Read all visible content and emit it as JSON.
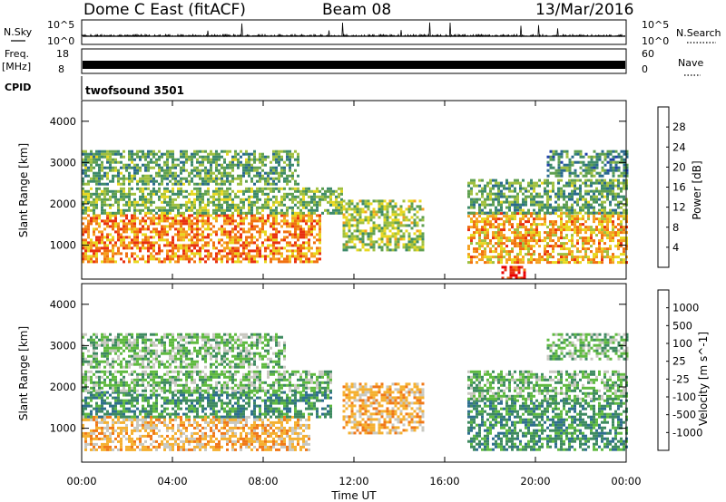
{
  "header": {
    "station": "Dome C East (fitACF)",
    "beam": "Beam 08",
    "date": "13/Mar/2016"
  },
  "panels": {
    "nsky": {
      "label": "N.Sky",
      "ticks": [
        "10^5",
        "10^0"
      ],
      "right_label": "N.Search",
      "right_ticks": [
        "10^5",
        "10^0"
      ]
    },
    "freq": {
      "label_line1": "Freq.",
      "label_line2": "[MHz]",
      "ticks": [
        "18",
        "8"
      ],
      "right_label": "Nave",
      "right_ticks": [
        "60",
        "0"
      ]
    },
    "cpid": {
      "label": "CPID",
      "program": "twofsound 3501"
    }
  },
  "chart_data": [
    {
      "type": "heatmap",
      "name": "power",
      "xlabel": "Time UT",
      "ylabel": "Slant Range [km]",
      "x_ticks": [
        "00:00",
        "04:00",
        "08:00",
        "12:00",
        "16:00",
        "20:00",
        "00:00"
      ],
      "x_range_hours": [
        0,
        24
      ],
      "y_ticks": [
        1000,
        2000,
        3000,
        4000
      ],
      "y_range_km": [
        180,
        4500
      ],
      "colorbar": {
        "label": "Power [dB]",
        "ticks": [
          "28",
          "24",
          "20",
          "16",
          "12",
          "8",
          "4"
        ],
        "range": [
          0,
          32
        ],
        "colors": [
          "#0000ff",
          "#1d3fa8",
          "#2a6a8e",
          "#3d8a6a",
          "#5fa050",
          "#a0c040",
          "#e8d820",
          "#f5a020",
          "#f07010",
          "#e83010",
          "#e80000"
        ]
      },
      "bands": [
        {
          "t0": 0,
          "t1": 10.5,
          "r0": 600,
          "r1": 1750,
          "value": 24
        },
        {
          "t0": 0,
          "t1": 11.5,
          "r0": 1750,
          "r1": 2400,
          "value": 14
        },
        {
          "t0": 0,
          "t1": 9.5,
          "r0": 2500,
          "r1": 3300,
          "value": 12
        },
        {
          "t0": 11.5,
          "t1": 15,
          "r0": 900,
          "r1": 2100,
          "value": 16
        },
        {
          "t0": 17,
          "t1": 24,
          "r0": 600,
          "r1": 1800,
          "value": 22
        },
        {
          "t0": 17,
          "t1": 24,
          "r0": 1800,
          "r1": 2600,
          "value": 12
        },
        {
          "t0": 20.5,
          "t1": 24,
          "r0": 2700,
          "r1": 3300,
          "value": 10
        },
        {
          "t0": 18.5,
          "t1": 19.5,
          "r0": 180,
          "r1": 500,
          "value": 30
        }
      ]
    },
    {
      "type": "heatmap",
      "name": "velocity",
      "xlabel": "Time UT",
      "ylabel": "Slant Range [km]",
      "x_ticks": [
        "00:00",
        "04:00",
        "08:00",
        "12:00",
        "16:00",
        "20:00",
        "00:00"
      ],
      "x_range_hours": [
        0,
        24
      ],
      "y_ticks": [
        1000,
        2000,
        3000,
        4000
      ],
      "y_range_km": [
        180,
        4500
      ],
      "colorbar": {
        "label": "Velocity [m s^-1]",
        "ticks": [
          "1000",
          "500",
          "100",
          "25",
          "-25",
          "-100",
          "-500",
          "-1000"
        ],
        "colors": [
          "#1a3fb0",
          "#2e6e8e",
          "#3e8a60",
          "#5fba40",
          "#c8c8c0",
          "#f5b030",
          "#f07818",
          "#e83010",
          "#e80000"
        ]
      },
      "bands": [
        {
          "t0": 0,
          "t1": 10,
          "r0": 500,
          "r1": 1300,
          "value": "-100"
        },
        {
          "t0": 0,
          "t1": 11,
          "r0": 1300,
          "r1": 1900,
          "value": "100"
        },
        {
          "t0": 0,
          "t1": 11,
          "r0": 1900,
          "r1": 2400,
          "value": "25"
        },
        {
          "t0": 0,
          "t1": 9,
          "r0": 2500,
          "r1": 3300,
          "value": "25"
        },
        {
          "t0": 11.5,
          "t1": 15,
          "r0": 900,
          "r1": 2100,
          "value": "-100"
        },
        {
          "t0": 17,
          "t1": 24,
          "r0": 500,
          "r1": 1700,
          "value": "100"
        },
        {
          "t0": 17,
          "t1": 24,
          "r0": 1700,
          "r1": 2400,
          "value": "25"
        },
        {
          "t0": 20.5,
          "t1": 24,
          "r0": 2700,
          "r1": 3300,
          "value": "25"
        }
      ]
    }
  ]
}
